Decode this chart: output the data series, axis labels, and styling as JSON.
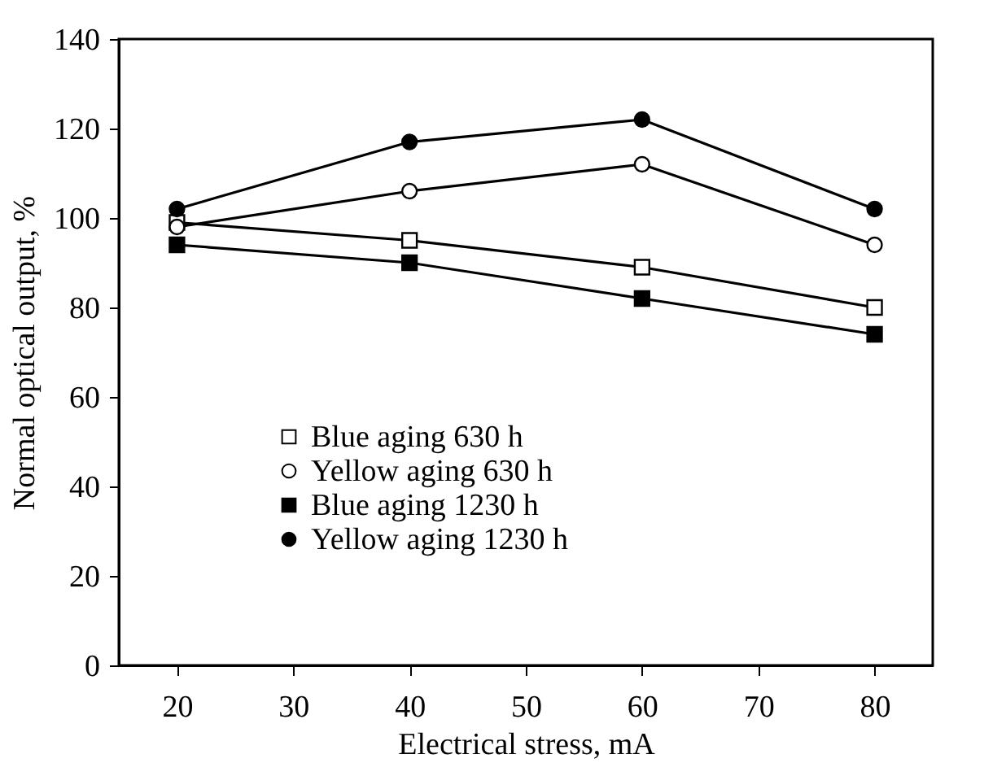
{
  "chart_data": {
    "type": "line",
    "xlabel": "Electrical stress, mA",
    "ylabel": "Normal optical output, %",
    "x": [
      20,
      40,
      60,
      80
    ],
    "series": [
      {
        "name": "Blue aging 630 h",
        "color": "#ffffff",
        "marker": "square",
        "values": [
          99,
          95,
          89,
          80
        ]
      },
      {
        "name": "Yellow aging 630 h",
        "color": "#ffffff",
        "marker": "circle",
        "values": [
          98,
          106,
          112,
          94
        ]
      },
      {
        "name": "Blue aging 1230 h",
        "color": "#000000",
        "marker": "square",
        "values": [
          94,
          90,
          82,
          74
        ]
      },
      {
        "name": "Yellow aging 1230 h",
        "color": "#000000",
        "marker": "circle",
        "values": [
          102,
          117,
          122,
          102
        ]
      }
    ],
    "xlim": [
      15,
      85
    ],
    "xticks": [
      20,
      30,
      40,
      50,
      60,
      70,
      80
    ],
    "ylim": [
      0,
      140
    ],
    "yticks": [
      0,
      20,
      40,
      60,
      80,
      100,
      120,
      140
    ],
    "grid": false,
    "legend": "bottom left",
    "line_style": "solid"
  }
}
